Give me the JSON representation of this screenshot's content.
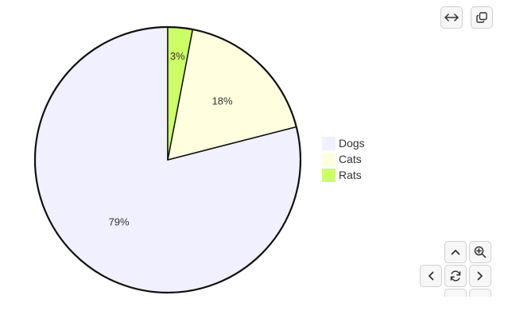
{
  "chart_data": {
    "type": "pie",
    "title": "",
    "slices": [
      {
        "label": "Dogs",
        "value": 79,
        "display": "79%",
        "color": "#f0f0ff"
      },
      {
        "label": "Cats",
        "value": 18,
        "display": "18%",
        "color": "#ffffe0"
      },
      {
        "label": "Rats",
        "value": 3,
        "display": "3%",
        "color": "#ccff66"
      }
    ],
    "start_angle_deg": 0,
    "direction": "counterclockwise",
    "stroke_color": "#111111",
    "legend_position": "right"
  },
  "toolbar": {
    "top": [
      {
        "name": "expand-button",
        "icon": "horizontal-arrows-icon"
      },
      {
        "name": "copy-button",
        "icon": "copy-icon"
      }
    ],
    "bottom": [
      {
        "name": "pan-up-button",
        "icon": "chevron-up-icon"
      },
      {
        "name": "zoom-in-button",
        "icon": "zoom-in-icon"
      },
      {
        "name": "pan-left-button",
        "icon": "chevron-left-icon"
      },
      {
        "name": "reset-button",
        "icon": "refresh-icon"
      },
      {
        "name": "pan-right-button",
        "icon": "chevron-right-icon"
      }
    ]
  }
}
